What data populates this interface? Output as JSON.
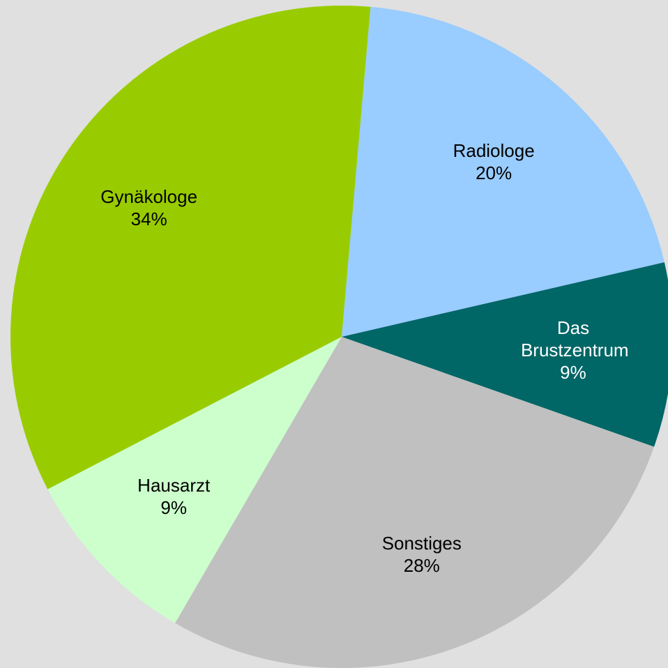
{
  "chart_data": {
    "type": "pie",
    "categories": [
      "Radiologe",
      "Das Brustzentrum",
      "Sonstiges",
      "Hausarzt",
      "Gynäkologe"
    ],
    "values": [
      20,
      9,
      28,
      9,
      34
    ],
    "value_labels": [
      "20%",
      "9%",
      "28%",
      "9%",
      "34%"
    ],
    "colors": [
      "#99ccff",
      "#006666",
      "#c0c0c0",
      "#ccffcc",
      "#99cc00"
    ]
  }
}
